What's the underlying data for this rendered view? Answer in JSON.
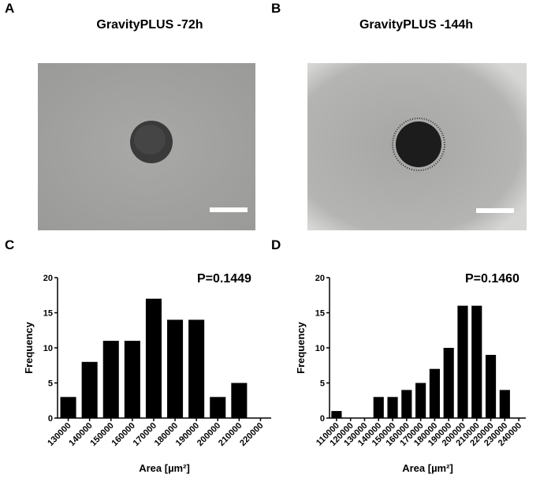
{
  "panels": [
    {
      "label": "A",
      "title": "GravityPLUS -72h"
    },
    {
      "label": "B",
      "title": "GravityPLUS -144h"
    }
  ],
  "chart_data": [
    {
      "type": "bar",
      "panel_label": "C",
      "annotation": "P=0.1449",
      "x_label": "Area [µm²]",
      "y_label": "Frequency",
      "categories": [
        "130000",
        "140000",
        "150000",
        "160000",
        "170000",
        "180000",
        "190000",
        "200000",
        "210000",
        "220000"
      ],
      "values": [
        3,
        8,
        11,
        11,
        17,
        14,
        14,
        3,
        5,
        0
      ],
      "color": "#000000",
      "ylim": [
        0,
        20
      ],
      "yticks": [
        0,
        5,
        10,
        15,
        20
      ]
    },
    {
      "type": "bar",
      "panel_label": "D",
      "annotation": "P=0.1460",
      "x_label": "Area [µm²]",
      "y_label": "Frequency",
      "categories": [
        "110000",
        "120000",
        "130000",
        "140000",
        "150000",
        "160000",
        "170000",
        "180000",
        "190000",
        "200000",
        "210000",
        "220000",
        "230000",
        "240000"
      ],
      "values": [
        1,
        0,
        0,
        3,
        3,
        4,
        5,
        7,
        10,
        16,
        16,
        9,
        4,
        0
      ],
      "color": "#000000",
      "ylim": [
        0,
        20
      ],
      "yticks": [
        0,
        5,
        10,
        15,
        20
      ]
    }
  ]
}
